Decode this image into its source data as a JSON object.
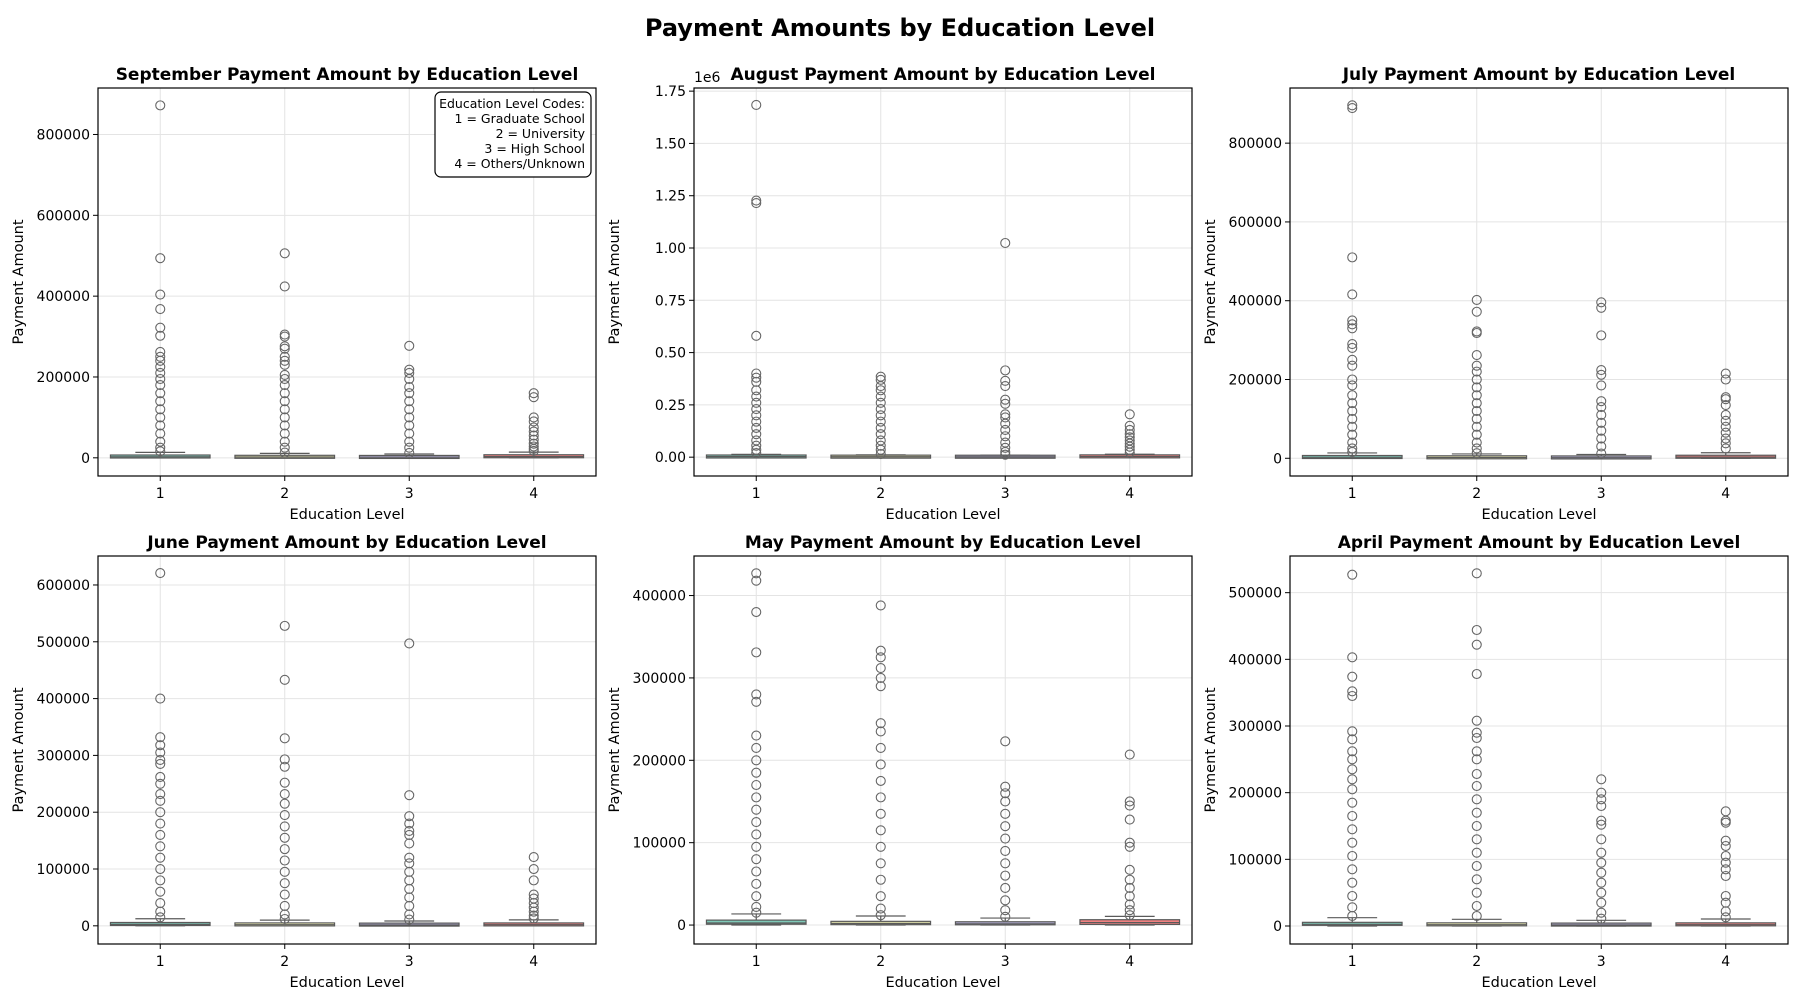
{
  "suptitle": "Payment Amounts by Education Level",
  "colors": {
    "l1": "#7fc9b8",
    "l2": "#f4f4b8",
    "l3": "#b3aed6",
    "l4": "#f08080",
    "frame": "#000000",
    "grid": "#e4e4e4",
    "whisker": "#5a5a5a",
    "flier": "#666666"
  },
  "chart_data": [
    {
      "type": "box",
      "title": "September Payment Amount by Education Level",
      "xlabel": "Education Level",
      "ylabel": "Payment Amount",
      "categories": [
        "1",
        "2",
        "3",
        "4"
      ],
      "ylim": [
        -45000,
        915000
      ],
      "yticks": [
        0,
        200000,
        400000,
        600000,
        800000
      ],
      "ytick_labels": [
        "0",
        "200000",
        "400000",
        "600000",
        "800000"
      ],
      "offset_label": "",
      "legend": {
        "title": "Education Level Codes:",
        "lines": [
          "1 = Graduate School",
          "2 = University",
          "3 = High School",
          "4 = Others/Unknown"
        ],
        "placement": "top-right"
      },
      "boxes": [
        {
          "q1": 1000,
          "median": 2500,
          "q3": 5500,
          "whisker_low": 0,
          "whisker_high": 13500,
          "fliers": [
            872000,
            494000,
            404000,
            368000,
            322000,
            302000,
            262000,
            250000,
            240000,
            225000,
            210000,
            195000,
            180000,
            160000,
            140000,
            120000,
            100000,
            80000,
            60000,
            40000,
            25000,
            16000
          ]
        },
        {
          "q1": 500,
          "median": 2000,
          "q3": 4500,
          "whisker_low": 0,
          "whisker_high": 11000,
          "fliers": [
            506000,
            424000,
            305000,
            300000,
            276000,
            270000,
            250000,
            240000,
            230000,
            205000,
            195000,
            180000,
            160000,
            140000,
            120000,
            100000,
            80000,
            60000,
            40000,
            25000,
            13000
          ]
        },
        {
          "q1": 300,
          "median": 1500,
          "q3": 4000,
          "whisker_low": 0,
          "whisker_high": 9500,
          "fliers": [
            277000,
            218000,
            210000,
            195000,
            175000,
            160000,
            140000,
            120000,
            100000,
            80000,
            60000,
            40000,
            25000,
            12000
          ]
        },
        {
          "q1": 800,
          "median": 3000,
          "q3": 7000,
          "whisker_low": 0,
          "whisker_high": 14000,
          "fliers": [
            160000,
            150000,
            100000,
            90000,
            75000,
            65000,
            55000,
            45000,
            35000,
            28000,
            22000,
            17000
          ]
        }
      ]
    },
    {
      "type": "box",
      "title": "August Payment Amount by Education Level",
      "xlabel": "Education Level",
      "ylabel": "Payment Amount",
      "categories": [
        "1",
        "2",
        "3",
        "4"
      ],
      "ylim": [
        -90000,
        1765000
      ],
      "yticks": [
        0,
        250000,
        500000,
        750000,
        1000000,
        1250000,
        1500000,
        1750000
      ],
      "ytick_labels": [
        "0.00",
        "0.25",
        "0.50",
        "0.75",
        "1.00",
        "1.25",
        "1.50",
        "1.75"
      ],
      "offset_label": "1e6",
      "boxes": [
        {
          "q1": 1000,
          "median": 2500,
          "q3": 5500,
          "whisker_low": 0,
          "whisker_high": 13500,
          "fliers": [
            1684000,
            1227000,
            1215000,
            580000,
            400000,
            380000,
            360000,
            320000,
            290000,
            260000,
            230000,
            200000,
            170000,
            140000,
            110000,
            80000,
            55000,
            35000,
            20000
          ]
        },
        {
          "q1": 500,
          "median": 2000,
          "q3": 4500,
          "whisker_low": 0,
          "whisker_high": 11000,
          "fliers": [
            385000,
            370000,
            340000,
            320000,
            290000,
            260000,
            230000,
            200000,
            170000,
            140000,
            110000,
            80000,
            55000,
            35000,
            15000
          ]
        },
        {
          "q1": 300,
          "median": 1500,
          "q3": 4000,
          "whisker_low": 0,
          "whisker_high": 9500,
          "fliers": [
            1024000,
            415000,
            365000,
            340000,
            275000,
            255000,
            205000,
            190000,
            160000,
            130000,
            100000,
            70000,
            45000,
            25000,
            12000
          ]
        },
        {
          "q1": 800,
          "median": 3000,
          "q3": 7000,
          "whisker_low": 0,
          "whisker_high": 14000,
          "fliers": [
            205000,
            150000,
            130000,
            110000,
            95000,
            80000,
            65000,
            50000,
            35000,
            22000
          ]
        }
      ]
    },
    {
      "type": "box",
      "title": "July Payment Amount by Education Level",
      "xlabel": "Education Level",
      "ylabel": "Payment Amount",
      "categories": [
        "1",
        "2",
        "3",
        "4"
      ],
      "ylim": [
        -45000,
        940000
      ],
      "yticks": [
        0,
        200000,
        400000,
        600000,
        800000
      ],
      "ytick_labels": [
        "0",
        "200000",
        "400000",
        "600000",
        "800000"
      ],
      "offset_label": "",
      "boxes": [
        {
          "q1": 1000,
          "median": 2500,
          "q3": 5500,
          "whisker_low": 0,
          "whisker_high": 13500,
          "fliers": [
            896000,
            889000,
            510000,
            416000,
            350000,
            340000,
            330000,
            290000,
            280000,
            250000,
            235000,
            200000,
            185000,
            160000,
            140000,
            120000,
            100000,
            80000,
            60000,
            40000,
            25000,
            16000
          ]
        },
        {
          "q1": 500,
          "median": 2000,
          "q3": 4500,
          "whisker_low": 0,
          "whisker_high": 11000,
          "fliers": [
            402000,
            372000,
            322000,
            318000,
            262000,
            235000,
            220000,
            200000,
            180000,
            160000,
            140000,
            120000,
            100000,
            80000,
            60000,
            40000,
            25000,
            13000
          ]
        },
        {
          "q1": 300,
          "median": 1500,
          "q3": 4000,
          "whisker_low": 0,
          "whisker_high": 9500,
          "fliers": [
            396000,
            382000,
            312000,
            224000,
            212000,
            185000,
            145000,
            130000,
            110000,
            90000,
            70000,
            50000,
            30000,
            12000
          ]
        },
        {
          "q1": 800,
          "median": 3000,
          "q3": 7000,
          "whisker_low": 0,
          "whisker_high": 14000,
          "fliers": [
            215000,
            200000,
            155000,
            150000,
            135000,
            110000,
            95000,
            80000,
            65000,
            50000,
            38000,
            25000
          ]
        }
      ]
    },
    {
      "type": "box",
      "title": "June Payment Amount by Education Level",
      "xlabel": "Education Level",
      "ylabel": "Payment Amount",
      "categories": [
        "1",
        "2",
        "3",
        "4"
      ],
      "ylim": [
        -32000,
        651000
      ],
      "yticks": [
        0,
        100000,
        200000,
        300000,
        400000,
        500000,
        600000
      ],
      "ytick_labels": [
        "0",
        "100000",
        "200000",
        "300000",
        "400000",
        "500000",
        "600000"
      ],
      "offset_label": "",
      "boxes": [
        {
          "q1": 1000,
          "median": 2500,
          "q3": 5500,
          "whisker_low": 0,
          "whisker_high": 12500,
          "fliers": [
            621000,
            400000,
            332000,
            318000,
            305000,
            292000,
            285000,
            262000,
            250000,
            232000,
            220000,
            200000,
            180000,
            160000,
            140000,
            120000,
            100000,
            80000,
            60000,
            40000,
            25000,
            15000
          ]
        },
        {
          "q1": 500,
          "median": 2000,
          "q3": 4500,
          "whisker_low": 0,
          "whisker_high": 10000,
          "fliers": [
            528000,
            433000,
            330000,
            293000,
            280000,
            252000,
            232000,
            215000,
            195000,
            175000,
            155000,
            135000,
            115000,
            95000,
            75000,
            55000,
            35000,
            20000,
            12000
          ]
        },
        {
          "q1": 300,
          "median": 1500,
          "q3": 4000,
          "whisker_low": 0,
          "whisker_high": 8500,
          "fliers": [
            497000,
            230000,
            193000,
            180000,
            167000,
            160000,
            145000,
            120000,
            110000,
            95000,
            80000,
            65000,
            50000,
            35000,
            20000,
            11000
          ]
        },
        {
          "q1": 500,
          "median": 2000,
          "q3": 4500,
          "whisker_low": 0,
          "whisker_high": 10500,
          "fliers": [
            121000,
            100000,
            80000,
            55000,
            48000,
            40000,
            32000,
            25000,
            18000,
            13000
          ]
        }
      ]
    },
    {
      "type": "box",
      "title": "May Payment Amount by Education Level",
      "xlabel": "Education Level",
      "ylabel": "Payment Amount",
      "categories": [
        "1",
        "2",
        "3",
        "4"
      ],
      "ylim": [
        -23000,
        448000
      ],
      "yticks": [
        0,
        100000,
        200000,
        300000,
        400000
      ],
      "ytick_labels": [
        "0",
        "100000",
        "200000",
        "300000",
        "400000"
      ],
      "offset_label": "",
      "boxes": [
        {
          "q1": 1000,
          "median": 2500,
          "q3": 6000,
          "whisker_low": 0,
          "whisker_high": 13500,
          "fliers": [
            427000,
            418000,
            380000,
            331000,
            280000,
            271000,
            230000,
            215000,
            200000,
            185000,
            170000,
            155000,
            140000,
            125000,
            110000,
            95000,
            80000,
            65000,
            50000,
            35000,
            22000,
            15000
          ]
        },
        {
          "q1": 500,
          "median": 2000,
          "q3": 4500,
          "whisker_low": 0,
          "whisker_high": 11000,
          "fliers": [
            388000,
            333000,
            325000,
            312000,
            300000,
            290000,
            245000,
            235000,
            215000,
            195000,
            175000,
            155000,
            135000,
            115000,
            95000,
            75000,
            55000,
            35000,
            20000,
            12000
          ]
        },
        {
          "q1": 300,
          "median": 1500,
          "q3": 4000,
          "whisker_low": 0,
          "whisker_high": 8500,
          "fliers": [
            223000,
            168000,
            160000,
            150000,
            135000,
            120000,
            105000,
            90000,
            75000,
            60000,
            45000,
            30000,
            18000,
            10000
          ]
        },
        {
          "q1": 800,
          "median": 3000,
          "q3": 6500,
          "whisker_low": 0,
          "whisker_high": 10500,
          "fliers": [
            207000,
            150000,
            145000,
            128000,
            100000,
            95000,
            67000,
            55000,
            45000,
            35000,
            25000,
            18000,
            12000
          ]
        }
      ]
    },
    {
      "type": "box",
      "title": "April Payment Amount by Education Level",
      "xlabel": "Education Level",
      "ylabel": "Payment Amount",
      "categories": [
        "1",
        "2",
        "3",
        "4"
      ],
      "ylim": [
        -27000,
        555000
      ],
      "yticks": [
        0,
        100000,
        200000,
        300000,
        400000,
        500000
      ],
      "ytick_labels": [
        "0",
        "100000",
        "200000",
        "300000",
        "400000",
        "500000"
      ],
      "offset_label": "",
      "boxes": [
        {
          "q1": 1000,
          "median": 2500,
          "q3": 5500,
          "whisker_low": 0,
          "whisker_high": 12500,
          "fliers": [
            527000,
            403000,
            374000,
            352000,
            345000,
            292000,
            280000,
            262000,
            250000,
            235000,
            220000,
            205000,
            185000,
            165000,
            145000,
            125000,
            105000,
            85000,
            65000,
            45000,
            28000,
            15000
          ]
        },
        {
          "q1": 500,
          "median": 2000,
          "q3": 4500,
          "whisker_low": 0,
          "whisker_high": 10000,
          "fliers": [
            529000,
            444000,
            422000,
            378000,
            308000,
            290000,
            282000,
            262000,
            250000,
            228000,
            210000,
            190000,
            170000,
            150000,
            130000,
            110000,
            90000,
            70000,
            50000,
            30000,
            15000
          ]
        },
        {
          "q1": 300,
          "median": 1500,
          "q3": 4000,
          "whisker_low": 0,
          "whisker_high": 8500,
          "fliers": [
            220000,
            200000,
            190000,
            180000,
            158000,
            152000,
            130000,
            110000,
            95000,
            80000,
            65000,
            50000,
            35000,
            20000,
            11000
          ]
        },
        {
          "q1": 500,
          "median": 2000,
          "q3": 4500,
          "whisker_low": 0,
          "whisker_high": 10500,
          "fliers": [
            172000,
            158000,
            155000,
            128000,
            120000,
            105000,
            95000,
            85000,
            75000,
            45000,
            35000,
            22000,
            13000
          ]
        }
      ]
    }
  ]
}
